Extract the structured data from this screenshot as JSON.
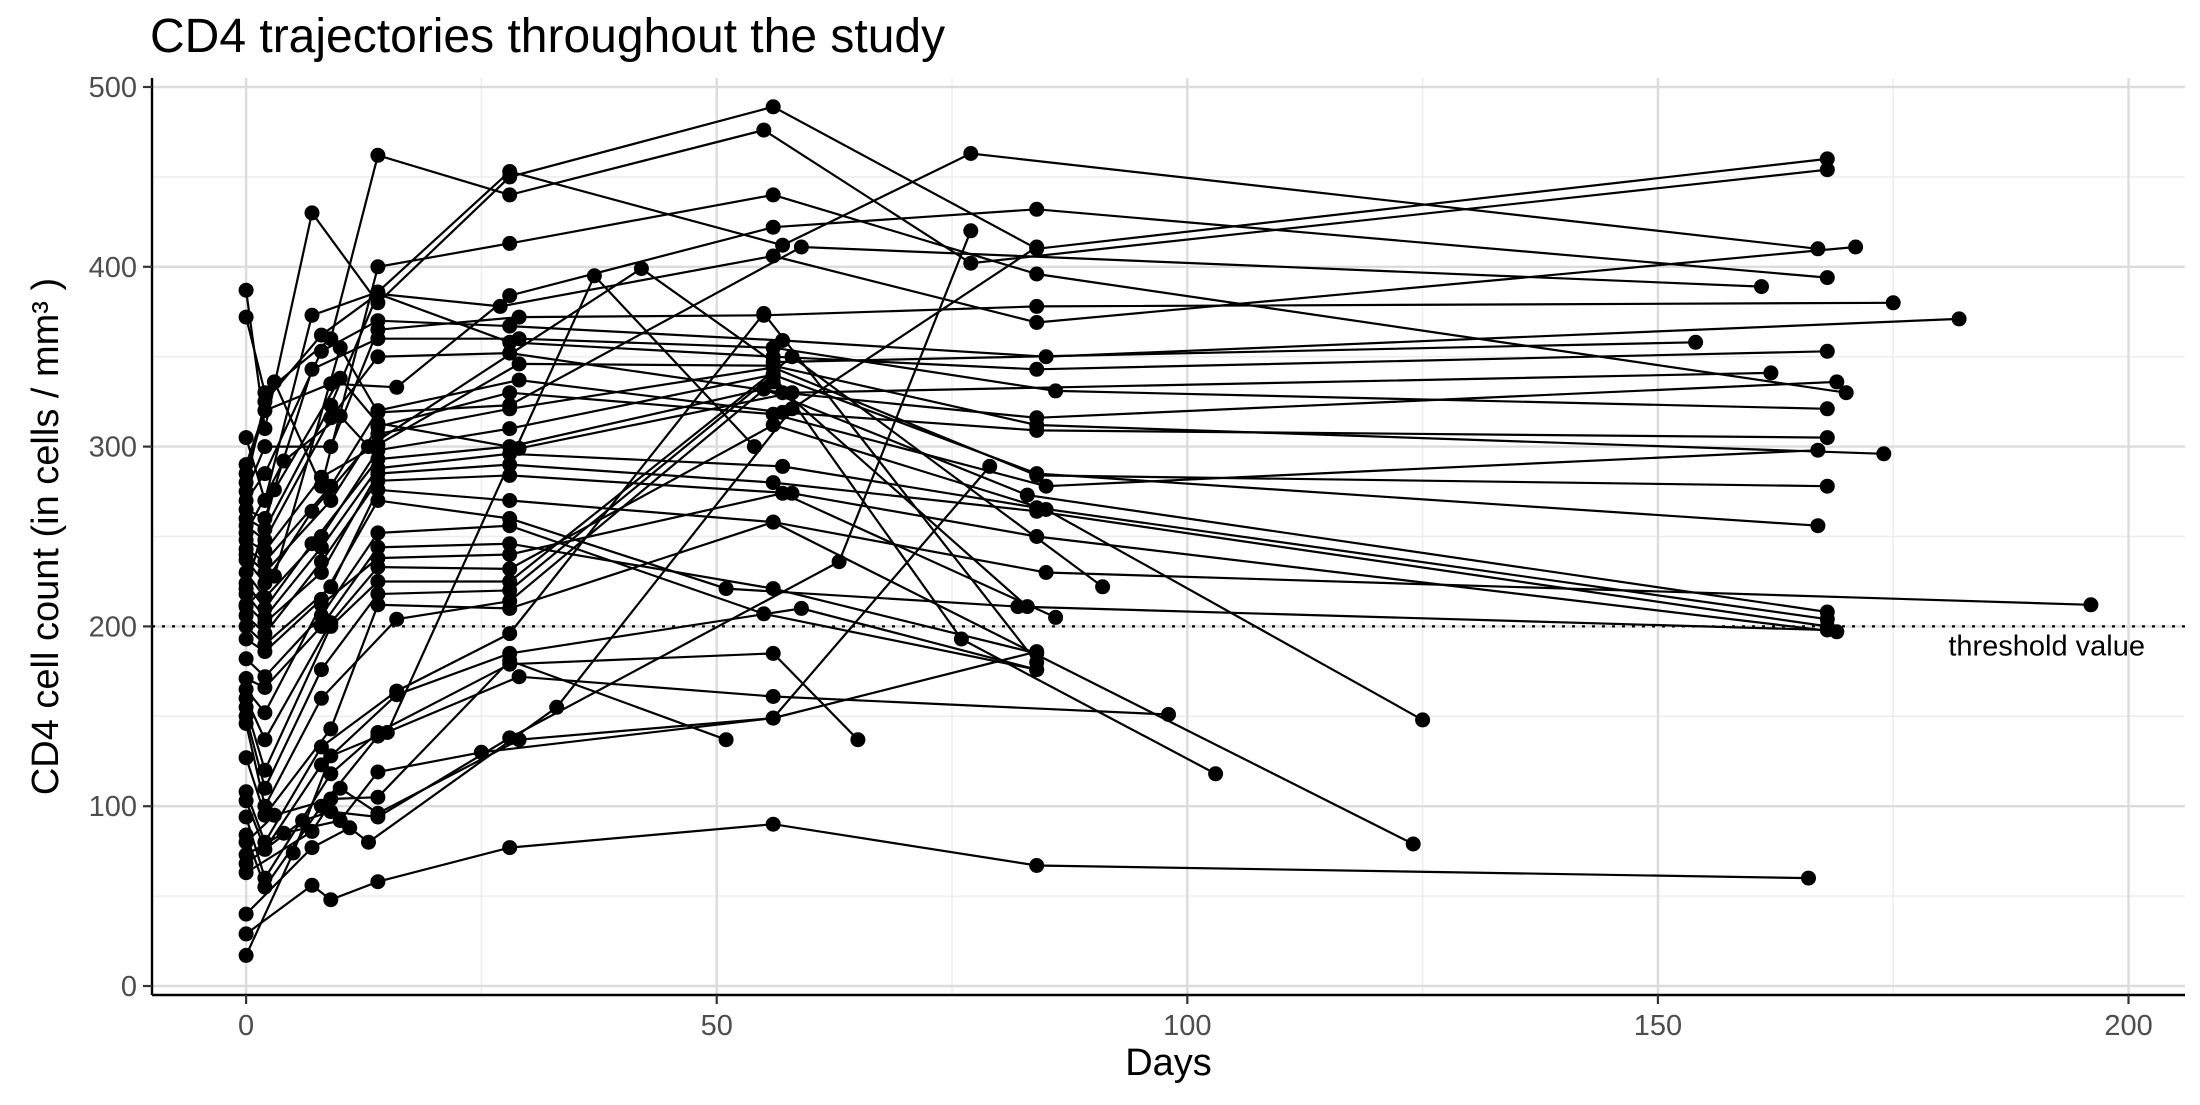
{
  "chart_data": {
    "type": "line",
    "title": "CD4 trajectories throughout the study",
    "xlabel": "Days",
    "ylabel": "CD4 cell count (in cells / mm³ )",
    "xlim": [
      -10,
      206
    ],
    "ylim": [
      -5,
      505
    ],
    "x_ticks": [
      0,
      50,
      100,
      150,
      200
    ],
    "y_ticks": [
      0,
      100,
      200,
      300,
      400,
      500
    ],
    "grid": "major and minor",
    "marker": "filled circle",
    "line_color": "#000000",
    "reference_line": {
      "y": 200,
      "style": "dotted",
      "label": "threshold value"
    },
    "series": [
      {
        "x": [
          0,
          2,
          7,
          14,
          28,
          56,
          84,
          168
        ],
        "y": [
          387,
          310,
          430,
          380,
          450,
          489,
          410,
          460
        ]
      },
      {
        "x": [
          0,
          2,
          9,
          14,
          28,
          55,
          77,
          168
        ],
        "y": [
          372,
          330,
          360,
          462,
          440,
          476,
          402,
          454
        ]
      },
      {
        "x": [
          0,
          2,
          7,
          14,
          28,
          57,
          77,
          167
        ],
        "y": [
          305,
          270,
          373,
          386,
          453,
          412,
          463,
          410
        ]
      },
      {
        "x": [
          0,
          3,
          8,
          14,
          28,
          56,
          84,
          170
        ],
        "y": [
          290,
          336,
          278,
          400,
          413,
          440,
          396,
          330
        ]
      },
      {
        "x": [
          0,
          2,
          9,
          16,
          28,
          56,
          84,
          168
        ],
        "y": [
          285,
          320,
          335,
          333,
          384,
          422,
          432,
          394
        ]
      },
      {
        "x": [
          0,
          2,
          8,
          14,
          27,
          56,
          84,
          171
        ],
        "y": [
          280,
          325,
          362,
          385,
          378,
          406,
          369,
          411
        ]
      },
      {
        "x": [
          0,
          2,
          9,
          14,
          29,
          55,
          84,
          175
        ],
        "y": [
          275,
          300,
          300,
          365,
          372,
          373,
          378,
          380
        ]
      },
      {
        "x": [
          0,
          2,
          8,
          14,
          28,
          57,
          85,
          182
        ],
        "y": [
          270,
          285,
          353,
          370,
          367,
          359,
          350,
          371
        ]
      },
      {
        "x": [
          0,
          2,
          7,
          14,
          29,
          56,
          86,
          168
        ],
        "y": [
          265,
          260,
          343,
          360,
          360,
          355,
          331,
          321
        ]
      },
      {
        "x": [
          0,
          2,
          9,
          14,
          28,
          56,
          84,
          168
        ],
        "y": [
          260,
          254,
          323,
          385,
          358,
          350,
          343,
          353
        ]
      },
      {
        "x": [
          0,
          2,
          9,
          14,
          28,
          57,
          84,
          169
        ],
        "y": [
          256,
          248,
          316,
          350,
          352,
          330,
          316,
          336
        ]
      },
      {
        "x": [
          0,
          2,
          8,
          14,
          29,
          56,
          84,
          174
        ],
        "y": [
          248,
          242,
          283,
          301,
          346,
          345,
          312,
          296
        ]
      },
      {
        "x": [
          0,
          2,
          9,
          14,
          29,
          57,
          84,
          168
        ],
        "y": [
          243,
          236,
          278,
          320,
          337,
          319,
          309,
          305
        ]
      },
      {
        "x": [
          0,
          2,
          9,
          14,
          28,
          56,
          85,
          167
        ],
        "y": [
          240,
          230,
          270,
          311,
          330,
          318,
          278,
          298
        ]
      },
      {
        "x": [
          0,
          2,
          7,
          14,
          28,
          56,
          84,
          168
        ],
        "y": [
          237,
          224,
          264,
          307,
          321,
          344,
          284,
          278
        ]
      },
      {
        "x": [
          0,
          2,
          8,
          14,
          28,
          56,
          84,
          167
        ],
        "y": [
          230,
          216,
          250,
          298,
          310,
          340,
          285,
          256
        ]
      },
      {
        "x": [
          0,
          2,
          7,
          14,
          28,
          55,
          83,
          168
        ],
        "y": [
          224,
          210,
          246,
          293,
          300,
          332,
          273,
          208
        ]
      },
      {
        "x": [
          0,
          2,
          8,
          14,
          28,
          57,
          84,
          168
        ],
        "y": [
          218,
          205,
          244,
          288,
          296,
          289,
          266,
          204
        ]
      },
      {
        "x": [
          0,
          2,
          8,
          14,
          28,
          56,
          84,
          168
        ],
        "y": [
          212,
          202,
          230,
          285,
          290,
          280,
          264,
          200
        ]
      },
      {
        "x": [
          0,
          2,
          8,
          14,
          28,
          58,
          84,
          169
        ],
        "y": [
          206,
          196,
          236,
          281,
          284,
          274,
          250,
          197
        ]
      },
      {
        "x": [
          0,
          2,
          9,
          14,
          28,
          56,
          85,
          196
        ],
        "y": [
          200,
          190,
          222,
          276,
          270,
          258,
          230,
          212
        ]
      },
      {
        "x": [
          0,
          2,
          8,
          14,
          28,
          51,
          82,
          168
        ],
        "y": [
          193,
          186,
          215,
          270,
          260,
          221,
          211,
          198
        ]
      },
      {
        "x": [
          0,
          2,
          8,
          14,
          28,
          55,
          84
        ],
        "y": [
          182,
          172,
          206,
          252,
          256,
          207,
          176
        ]
      },
      {
        "x": [
          0,
          2,
          8,
          14,
          28,
          56,
          84
        ],
        "y": [
          171,
          166,
          200,
          244,
          246,
          221,
          185
        ]
      },
      {
        "x": [
          0,
          2,
          8,
          14,
          28,
          57,
          86
        ],
        "y": [
          165,
          152,
          212,
          238,
          240,
          274,
          205
        ]
      },
      {
        "x": [
          0,
          2,
          9,
          14,
          28,
          56,
          85,
          125
        ],
        "y": [
          160,
          137,
          202,
          233,
          232,
          312,
          265,
          148
        ]
      },
      {
        "x": [
          0,
          2,
          9,
          14,
          28,
          58,
          91
        ],
        "y": [
          155,
          120,
          200,
          225,
          225,
          350,
          222
        ]
      },
      {
        "x": [
          0,
          2,
          8,
          14,
          28,
          56,
          76,
          103
        ],
        "y": [
          150,
          110,
          176,
          218,
          220,
          340,
          193,
          118
        ]
      },
      {
        "x": [
          0,
          2,
          8,
          16,
          28,
          56,
          83
        ],
        "y": [
          146,
          100,
          160,
          204,
          214,
          336,
          211
        ]
      },
      {
        "x": [
          0,
          2,
          9,
          14,
          28,
          56,
          124
        ],
        "y": [
          127,
          95,
          143,
          212,
          210,
          258,
          79
        ]
      },
      {
        "x": [
          0,
          2,
          8,
          16,
          28,
          55,
          84
        ],
        "y": [
          108,
          80,
          133,
          164,
          196,
          374,
          180
        ]
      },
      {
        "x": [
          0,
          2,
          8,
          16,
          28,
          59,
          84
        ],
        "y": [
          103,
          76,
          123,
          162,
          185,
          210,
          176
        ]
      },
      {
        "x": [
          0,
          2,
          9,
          14,
          28,
          56,
          65
        ],
        "y": [
          94,
          60,
          118,
          141,
          179,
          185,
          137
        ]
      },
      {
        "x": [
          0,
          2,
          8,
          14,
          29,
          56,
          98
        ],
        "y": [
          84,
          55,
          100,
          139,
          172,
          161,
          151
        ]
      },
      {
        "x": [
          0,
          3,
          9,
          14,
          28,
          51
        ],
        "y": [
          80,
          95,
          104,
          105,
          181,
          137
        ]
      },
      {
        "x": [
          0,
          4,
          10,
          14,
          25,
          56,
          79
        ],
        "y": [
          73,
          85,
          92,
          119,
          130,
          149,
          289
        ]
      },
      {
        "x": [
          0,
          6,
          9,
          14,
          28,
          63,
          77
        ],
        "y": [
          68,
          92,
          97,
          94,
          138,
          236,
          420
        ]
      },
      {
        "x": [
          0,
          7,
          10,
          14,
          29,
          56,
          84
        ],
        "y": [
          63,
          86,
          110,
          96,
          137,
          149,
          186
        ]
      },
      {
        "x": [
          0,
          7,
          11,
          13,
          33,
          58,
          84
        ],
        "y": [
          40,
          77,
          88,
          80,
          155,
          321,
          411
        ]
      },
      {
        "x": [
          0,
          7,
          9,
          14,
          28,
          56,
          84,
          166
        ],
        "y": [
          29,
          56,
          48,
          58,
          77,
          90,
          67,
          60
        ]
      },
      {
        "x": [
          0,
          5,
          9,
          15,
          37,
          54
        ],
        "y": [
          17,
          74,
          128,
          141,
          395,
          300
        ]
      },
      {
        "x": [
          0,
          4,
          10,
          13,
          42,
          56,
          154
        ],
        "y": [
          252,
          292,
          317,
          300,
          399,
          347,
          358
        ]
      },
      {
        "x": [
          0,
          3,
          10,
          14,
          29,
          58,
          162
        ],
        "y": [
          221,
          276,
          338,
          313,
          299,
          330,
          341
        ]
      },
      {
        "x": [
          0,
          3,
          10,
          14,
          28,
          59,
          161
        ],
        "y": [
          211,
          228,
          355,
          319,
          323,
          411,
          389
        ]
      }
    ]
  }
}
